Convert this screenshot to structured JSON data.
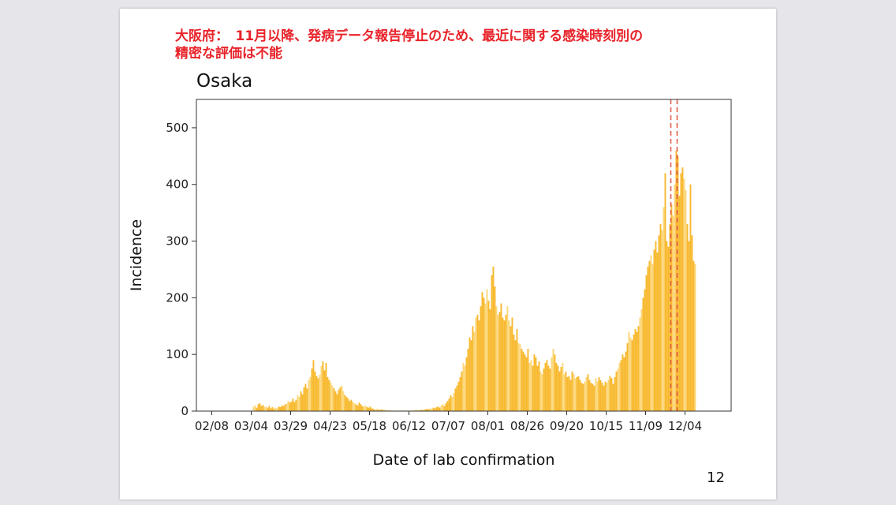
{
  "slide": {
    "note_line1": "大阪府：　11月以降、発病データ報告停止のため、最近に関する感染時刻別の",
    "note_line2": "精密な評価は不能",
    "page_number": "12"
  },
  "chart_data": {
    "type": "bar",
    "title": "Osaka",
    "xlabel": "Date of lab confirmation",
    "ylabel": "Incidence",
    "ylim": [
      0,
      550
    ],
    "y_ticks": [
      0,
      100,
      200,
      300,
      400,
      500
    ],
    "x_start": "02/01",
    "x_tick_labels": [
      "02/08",
      "03/04",
      "03/29",
      "04/23",
      "05/18",
      "06/12",
      "07/07",
      "08/01",
      "08/26",
      "09/20",
      "10/15",
      "11/09",
      "12/04"
    ],
    "x_tick_day_index": [
      7,
      32,
      57,
      82,
      107,
      132,
      157,
      182,
      207,
      232,
      257,
      282,
      307
    ],
    "bar_color": "#f8b92f",
    "bar_color_alt": "#fcd77a",
    "reference_lines": {
      "style": "dashed",
      "color": "#e25b4b",
      "day_index": [
        298,
        302
      ]
    },
    "values": [
      0,
      0,
      0,
      0,
      0,
      0,
      0,
      0,
      0,
      0,
      0,
      0,
      0,
      0,
      0,
      0,
      0,
      0,
      0,
      0,
      0,
      0,
      0,
      0,
      0,
      0,
      0,
      0,
      0,
      0,
      0,
      0,
      0,
      8,
      10,
      6,
      12,
      14,
      9,
      11,
      7,
      8,
      6,
      9,
      5,
      7,
      4,
      6,
      5,
      8,
      7,
      10,
      9,
      12,
      13,
      18,
      15,
      17,
      22,
      16,
      20,
      28,
      25,
      35,
      30,
      42,
      48,
      40,
      55,
      60,
      75,
      90,
      70,
      62,
      58,
      64,
      80,
      88,
      72,
      85,
      60,
      55,
      50,
      45,
      40,
      35,
      30,
      38,
      42,
      45,
      35,
      28,
      25,
      22,
      18,
      20,
      16,
      14,
      12,
      10,
      15,
      12,
      9,
      8,
      10,
      7,
      6,
      8,
      5,
      4,
      3,
      4,
      3,
      2,
      3,
      2,
      2,
      1,
      2,
      1,
      1,
      1,
      0,
      1,
      0,
      0,
      1,
      0,
      1,
      0,
      1,
      0,
      0,
      1,
      1,
      1,
      2,
      1,
      2,
      3,
      2,
      2,
      3,
      4,
      3,
      5,
      4,
      6,
      5,
      7,
      8,
      6,
      10,
      12,
      9,
      14,
      18,
      22,
      28,
      25,
      32,
      40,
      45,
      52,
      60,
      70,
      85,
      80,
      95,
      110,
      130,
      125,
      150,
      140,
      165,
      170,
      160,
      185,
      210,
      200,
      190,
      215,
      195,
      180,
      240,
      255,
      220,
      185,
      170,
      175,
      190,
      165,
      160,
      170,
      185,
      160,
      150,
      165,
      135,
      125,
      145,
      120,
      118,
      110,
      105,
      100,
      95,
      110,
      85,
      90,
      80,
      100,
      95,
      80,
      88,
      70,
      65,
      75,
      85,
      90,
      80,
      75,
      95,
      110,
      100,
      85,
      80,
      70,
      78,
      85,
      65,
      70,
      60,
      62,
      55,
      70,
      65,
      58,
      60,
      62,
      55,
      50,
      48,
      52,
      60,
      65,
      55,
      50,
      48,
      45,
      58,
      52,
      60,
      55,
      50,
      45,
      52,
      50,
      55,
      62,
      58,
      48,
      60,
      70,
      75,
      85,
      90,
      100,
      95,
      105,
      120,
      140,
      130,
      125,
      135,
      145,
      140,
      150,
      165,
      180,
      200,
      215,
      240,
      255,
      265,
      275,
      260,
      285,
      300,
      280,
      310,
      330,
      320,
      360,
      420,
      300,
      290,
      330,
      365,
      345,
      400,
      460,
      450,
      380,
      420,
      430,
      410,
      390,
      330,
      300,
      400,
      310,
      265,
      260
    ]
  }
}
